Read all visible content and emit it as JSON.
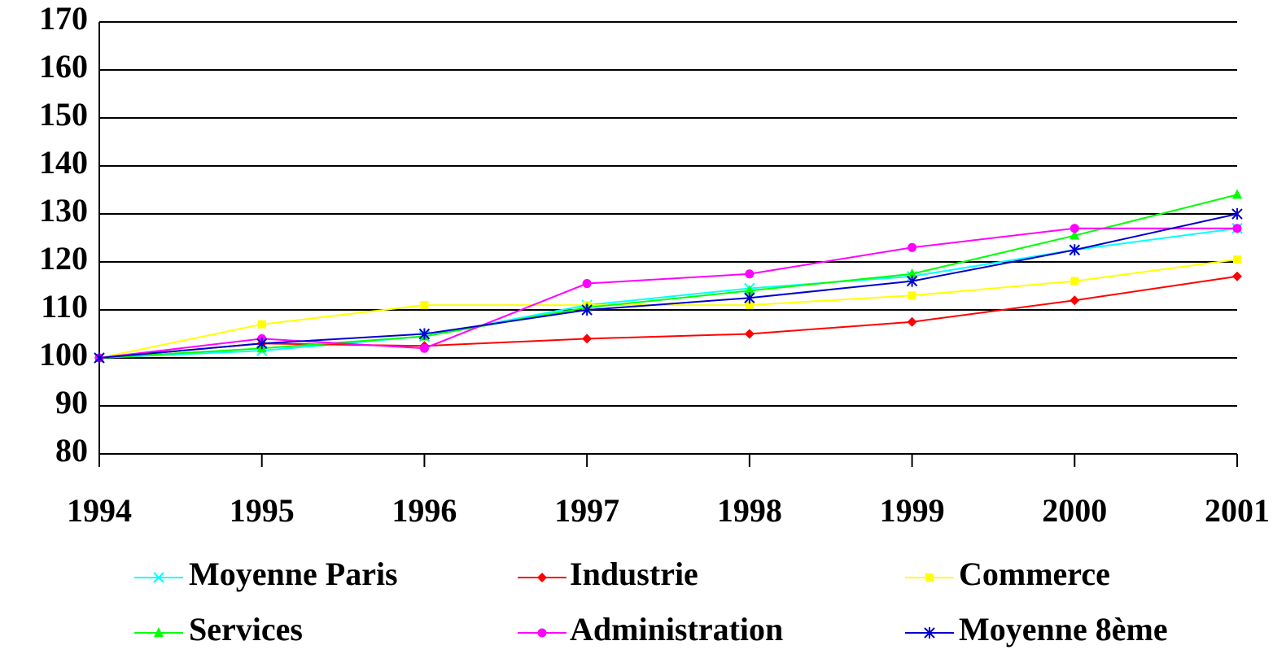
{
  "chart_data": {
    "type": "line",
    "categories": [
      "1994",
      "1995",
      "1996",
      "1997",
      "1998",
      "1999",
      "2000",
      "2001"
    ],
    "series": [
      {
        "name": "Moyenne Paris",
        "color": "#00ffff",
        "marker": "x",
        "values": [
          100,
          101.5,
          104.5,
          111,
          114.5,
          117,
          122.5,
          127
        ]
      },
      {
        "name": "Industrie",
        "color": "#ff0000",
        "marker": "diamond",
        "values": [
          100,
          103,
          102.5,
          104,
          105,
          107.5,
          112,
          117
        ]
      },
      {
        "name": "Commerce",
        "color": "#ffff00",
        "marker": "square",
        "values": [
          100,
          107,
          111,
          111,
          111,
          113,
          116,
          120.5
        ]
      },
      {
        "name": "Services",
        "color": "#00ff00",
        "marker": "triangle",
        "values": [
          100,
          102,
          104.5,
          110.5,
          114,
          117.5,
          125.5,
          134
        ]
      },
      {
        "name": "Administration",
        "color": "#ff00ff",
        "marker": "circle",
        "values": [
          100,
          104,
          102,
          115.5,
          117.5,
          123,
          127,
          127
        ]
      },
      {
        "name": "Moyenne 8ème",
        "color": "#0000cc",
        "marker": "star",
        "values": [
          100,
          103,
          105,
          110,
          112.5,
          116,
          122.5,
          130
        ]
      }
    ],
    "ylim": [
      80,
      170
    ],
    "yticks": [
      80,
      90,
      100,
      110,
      120,
      130,
      140,
      150,
      160,
      170
    ],
    "grid": true,
    "legend": "bottom"
  }
}
